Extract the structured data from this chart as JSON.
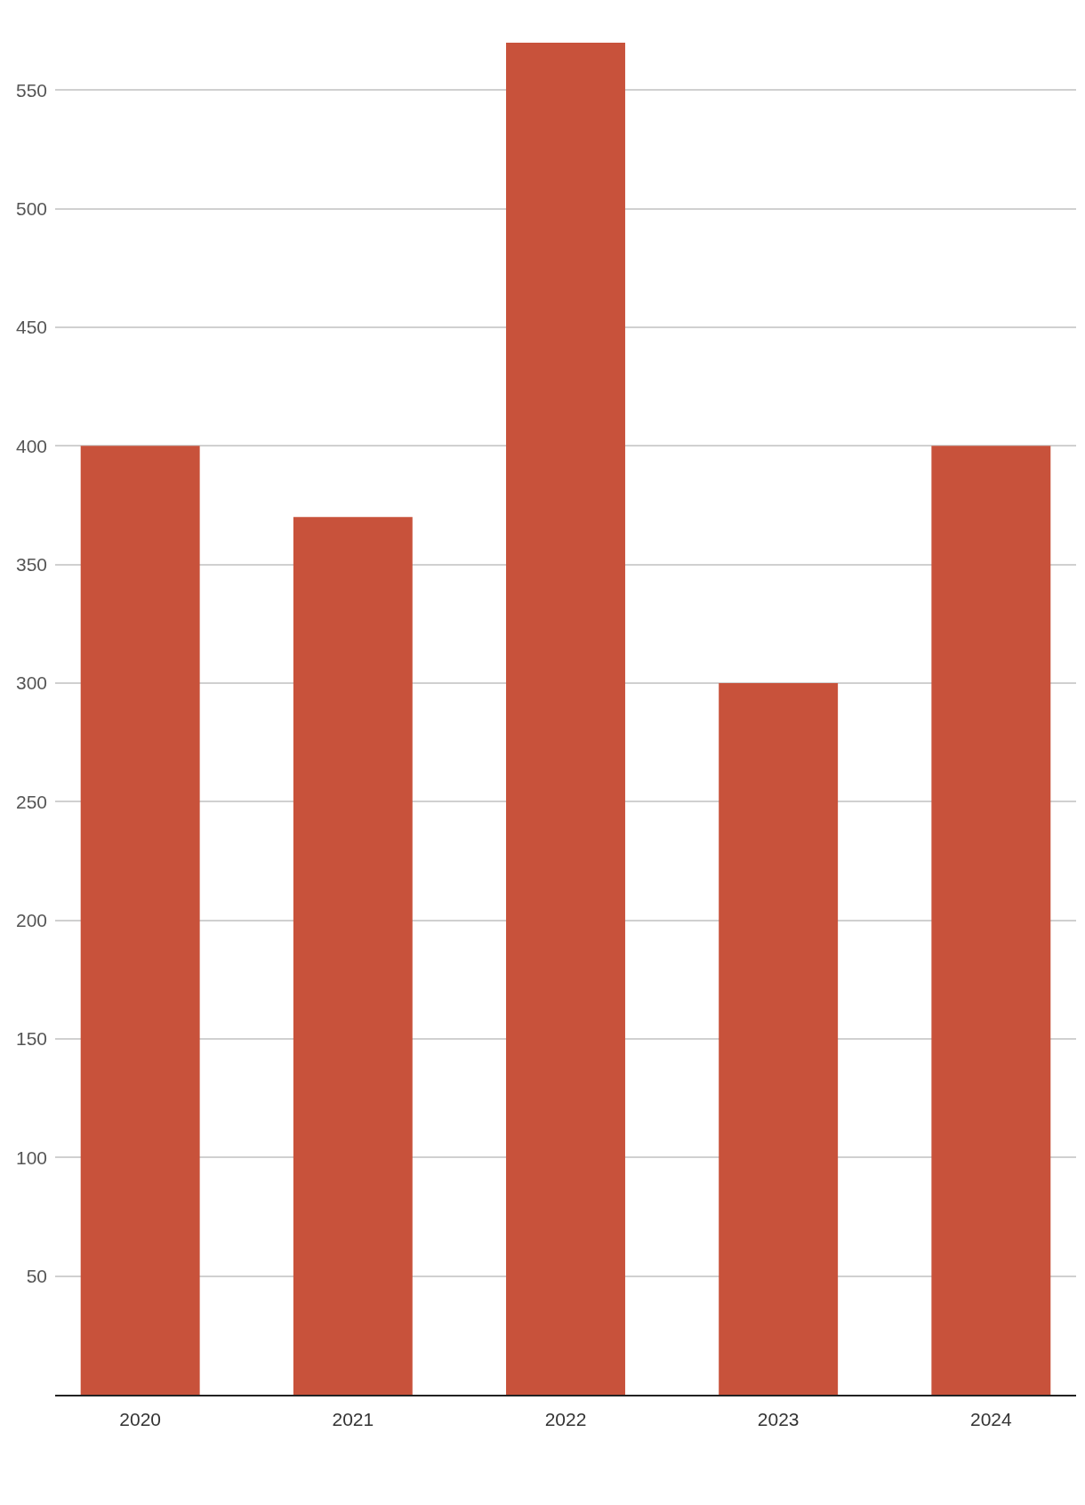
{
  "chart_data": {
    "type": "bar",
    "categories": [
      "2020",
      "2021",
      "2022",
      "2023",
      "2024"
    ],
    "values": [
      400,
      370,
      570,
      300,
      400
    ],
    "color": "#c8523b",
    "ylim": [
      0,
      570
    ],
    "yticks": [
      50,
      100,
      150,
      200,
      250,
      300,
      350,
      400,
      450,
      500,
      550
    ],
    "grid": "y"
  }
}
